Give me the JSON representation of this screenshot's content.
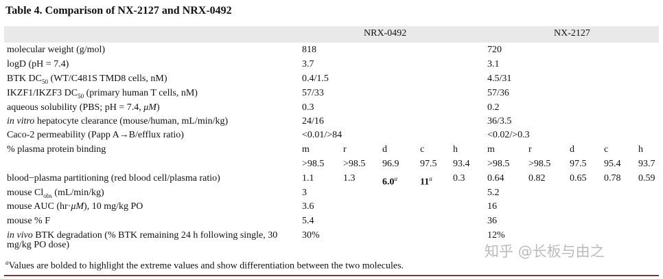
{
  "title": "Table 4. Comparison of NX-2127 and NRX-0492",
  "columns": [
    "NRX-0492",
    "NX-2127"
  ],
  "rows": [
    {
      "label": [
        "molecular weight (g/mol)"
      ],
      "values": [
        "818",
        "720"
      ]
    },
    {
      "label": [
        "logD (pH = 7.4)"
      ],
      "values": [
        "3.7",
        "3.1"
      ]
    },
    {
      "label": [
        "BTK DC",
        "50",
        " (WT/C481S TMD8 cells, nM)"
      ],
      "values": [
        "0.4/1.5",
        "4.5/31"
      ]
    },
    {
      "label": [
        "IKZF1/IKZF3 DC",
        "50",
        " (primary human T cells, nM)"
      ],
      "values": [
        "57/33",
        "57/36"
      ]
    },
    {
      "label": [
        "aqueous solubility (PBS; pH = 7.4, ",
        "μM",
        ")"
      ],
      "values": [
        "0.3",
        "0.2"
      ]
    },
    {
      "label": [
        "in vitro",
        " hepatocyte clearance (mouse/human, mL/min/kg)"
      ],
      "values": [
        "24/16",
        "36/3.5"
      ]
    },
    {
      "label": [
        "Caco-2 permeability (Papp A→B/efflux ratio)"
      ],
      "values": [
        "<0.01/>84",
        "<0.02/>0.3"
      ]
    },
    {
      "label": [
        "% plasma protein binding"
      ],
      "species": [
        "m",
        "r",
        "d",
        "c",
        "h",
        "m",
        "r",
        "d",
        "c",
        "h"
      ],
      "values": [
        ">98.5",
        ">98.5",
        "96.9",
        "97.5",
        "93.4",
        ">98.5",
        ">98.5",
        "97.5",
        "95.4",
        "93.7"
      ]
    },
    {
      "label": [
        "blood−plasma partitioning (red blood cell/plasma ratio)"
      ],
      "values": [
        "1.1",
        "1.3",
        {
          "text": "6.0",
          "footnote": "a"
        },
        {
          "text": "11",
          "footnote": "a"
        },
        "0.3",
        "0.64",
        "0.82",
        "0.65",
        "0.78",
        "0.59"
      ]
    },
    {
      "label": [
        "mouse Cl",
        "obs",
        " (mL/min/kg)"
      ],
      "values": [
        "3",
        "5.2"
      ]
    },
    {
      "label": [
        "mouse AUC (hr·",
        "μM",
        "), 10 mg/kg PO"
      ],
      "values": [
        "3.6",
        "16"
      ]
    },
    {
      "label": [
        "mouse % F"
      ],
      "values": [
        "5.4",
        "36"
      ]
    },
    {
      "label": [
        "in vivo",
        " BTK degradation (% BTK remaining 24 h following single, 30 mg/kg PO dose)"
      ],
      "values": [
        "30%",
        "12%"
      ]
    }
  ],
  "footnote": [
    "a",
    "Values are bolded to highlight the extreme values and show differentiation between the two molecules."
  ],
  "watermark": "知乎 @长板与由之"
}
